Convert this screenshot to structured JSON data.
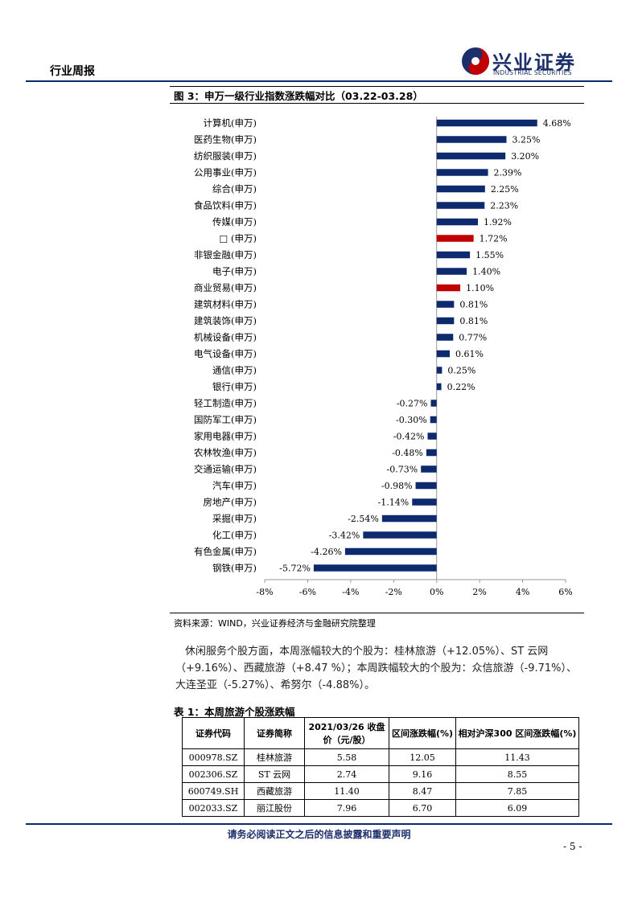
{
  "header": {
    "title": "行业周报",
    "logo_cn": "兴业证券",
    "logo_en": "INDUSTRIAL SECURITIES"
  },
  "figure": {
    "title": "图 3：申万一级行业指数涨跌幅对比（03.22-03.28）",
    "source": "资料来源：WIND，兴业证券经济与金融研究院整理"
  },
  "chart_data": {
    "type": "bar",
    "orientation": "horizontal",
    "categories": [
      "计算机(申万)",
      "医药生物(申万)",
      "纺织服装(申万)",
      "公用事业(申万)",
      "综合(申万)",
      "食品饮料(申万)",
      "传媒(申万)",
      "□    (申万)",
      "非银金融(申万)",
      "电子(申万)",
      "商业贸易(申万)",
      "建筑材料(申万)",
      "建筑装饰(申万)",
      "机械设备(申万)",
      "电气设备(申万)",
      "通信(申万)",
      "银行(申万)",
      "轻工制造(申万)",
      "国防军工(申万)",
      "家用电器(申万)",
      "农林牧渔(申万)",
      "交通运输(申万)",
      "汽车(申万)",
      "房地产(申万)",
      "采掘(申万)",
      "化工(申万)",
      "有色金属(申万)",
      "钢铁(申万)"
    ],
    "values": [
      4.68,
      3.25,
      3.2,
      2.39,
      2.25,
      2.23,
      1.92,
      1.72,
      1.55,
      1.4,
      1.1,
      0.81,
      0.81,
      0.77,
      0.61,
      0.25,
      0.22,
      -0.27,
      -0.3,
      -0.42,
      -0.48,
      -0.73,
      -0.98,
      -1.14,
      -2.54,
      -3.42,
      -4.26,
      -5.72
    ],
    "labels": [
      "4.68%",
      "3.25%",
      "3.20%",
      "2.39%",
      "2.25%",
      "2.23%",
      "1.92%",
      "1.72%",
      "1.55%",
      "1.40%",
      "1.10%",
      "0.81%",
      "0.81%",
      "0.77%",
      "0.61%",
      "0.25%",
      "0.22%",
      "-0.27%",
      "-0.30%",
      "-0.42%",
      "-0.48%",
      "-0.73%",
      "-0.98%",
      "-1.14%",
      "-2.54%",
      "-3.42%",
      "-4.26%",
      "-5.72%"
    ],
    "highlight": [
      7,
      10
    ],
    "xlim": [
      -8,
      6
    ],
    "xticks": [
      -8,
      -6,
      -4,
      -2,
      0,
      2,
      4,
      6
    ],
    "xtick_labels": [
      "-8%",
      "-6%",
      "-4%",
      "-2%",
      "0%",
      "2%",
      "4%",
      "6%"
    ],
    "color_default": "#0e2a6e",
    "color_highlight": "#c00000"
  },
  "paragraph": {
    "line1": "休闲服务个股方面，本周涨幅较大的个股为：桂林旅游（+12.05%）、ST 云网",
    "line2": "（+9.16%）、西藏旅游（+8.47 %）；本周跌幅较大的个股为：众信旅游（-9.71%）、",
    "line3": "大连圣亚（-5.27%）、希努尔（-4.88%）。"
  },
  "table": {
    "title": "表 1：本周旅游个股涨跌幅",
    "headers": [
      "证券代码",
      "证券简称",
      "2021/03/26 收盘价（元/股）",
      "区间涨跌幅(%)",
      "相对沪深300 区间涨跌幅(%)"
    ],
    "rows": [
      [
        "000978.SZ",
        "桂林旅游",
        "5.58",
        "12.05",
        "11.43"
      ],
      [
        "002306.SZ",
        "ST 云网",
        "2.74",
        "9.16",
        "8.55"
      ],
      [
        "600749.SH",
        "西藏旅游",
        "11.40",
        "8.47",
        "7.85"
      ],
      [
        "002033.SZ",
        "丽江股份",
        "7.96",
        "6.70",
        "6.09"
      ]
    ]
  },
  "footer": {
    "notice": "请务必阅读正文之后的信息披露和重要声明",
    "page": "- 5 -"
  }
}
